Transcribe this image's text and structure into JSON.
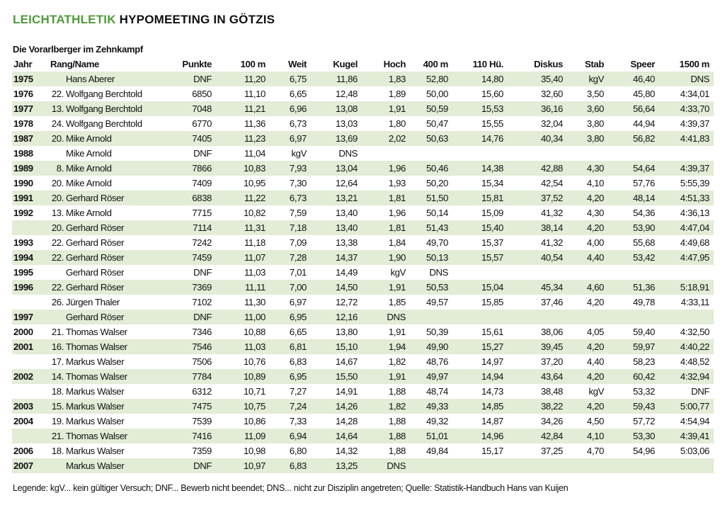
{
  "title": {
    "accent": "LEICHTATHLETIK",
    "rest": "HYPOMEETING IN GÖTZIS"
  },
  "subtitle": "Die Vorarlberger im Zehnkampf",
  "columns": [
    "Jahr",
    "Rang/Name",
    "Punkte",
    "100 m",
    "Weit",
    "Kugel",
    "Hoch",
    "400 m",
    "110 Hü.",
    "Diskus",
    "Stab",
    "Speer",
    "1500 m"
  ],
  "rows": [
    {
      "jahr": "1975",
      "rang": "",
      "name": "Hans Aberer",
      "punkte": "DNF",
      "m100": "11,20",
      "weit": "6,75",
      "kugel": "11,86",
      "hoch": "1,83",
      "m400": "52,80",
      "hue110": "14,80",
      "diskus": "35,40",
      "stab": "kgV",
      "speer": "46,40",
      "m1500": "DNS"
    },
    {
      "jahr": "1976",
      "rang": "22.",
      "name": "Wolfgang Berchtold",
      "punkte": "6850",
      "m100": "11,10",
      "weit": "6,65",
      "kugel": "12,48",
      "hoch": "1,89",
      "m400": "50,00",
      "hue110": "15,60",
      "diskus": "32,60",
      "stab": "3,50",
      "speer": "45,80",
      "m1500": "4:34,01"
    },
    {
      "jahr": "1977",
      "rang": "13.",
      "name": "Wolfgang Berchtold",
      "punkte": "7048",
      "m100": "11,21",
      "weit": "6,96",
      "kugel": "13,08",
      "hoch": "1,91",
      "m400": "50,59",
      "hue110": "15,53",
      "diskus": "36,16",
      "stab": "3,60",
      "speer": "56,64",
      "m1500": "4:33,70"
    },
    {
      "jahr": "1978",
      "rang": "24.",
      "name": "Wolfgang Berchtold",
      "punkte": "6770",
      "m100": "11,36",
      "weit": "6,73",
      "kugel": "13,03",
      "hoch": "1,80",
      "m400": "50,47",
      "hue110": "15,55",
      "diskus": "32,04",
      "stab": "3,80",
      "speer": "44,94",
      "m1500": "4:39,37"
    },
    {
      "jahr": "1987",
      "rang": "20.",
      "name": "Mike Arnold",
      "punkte": "7405",
      "m100": "11,23",
      "weit": "6,97",
      "kugel": "13,69",
      "hoch": "2,02",
      "m400": "50,63",
      "hue110": "14,76",
      "diskus": "40,34",
      "stab": "3,80",
      "speer": "56,82",
      "m1500": "4:41,83"
    },
    {
      "jahr": "1988",
      "rang": "",
      "name": "Mike Arnold",
      "punkte": "DNF",
      "m100": "11,04",
      "weit": "kgV",
      "kugel": "DNS",
      "hoch": "",
      "m400": "",
      "hue110": "",
      "diskus": "",
      "stab": "",
      "speer": "",
      "m1500": ""
    },
    {
      "jahr": "1989",
      "rang": "8.",
      "name": "Mike Arnold",
      "punkte": "7866",
      "m100": "10,83",
      "weit": "7,93",
      "kugel": "13,04",
      "hoch": "1,96",
      "m400": "50,46",
      "hue110": "14,38",
      "diskus": "42,88",
      "stab": "4,30",
      "speer": "54,64",
      "m1500": "4:39,37"
    },
    {
      "jahr": "1990",
      "rang": "20.",
      "name": "Mike Arnold",
      "punkte": "7409",
      "m100": "10,95",
      "weit": "7,30",
      "kugel": "12,64",
      "hoch": "1,93",
      "m400": "50,20",
      "hue110": "15,34",
      "diskus": "42,54",
      "stab": "4,10",
      "speer": "57,76",
      "m1500": "5:55,39"
    },
    {
      "jahr": "1991",
      "rang": "20.",
      "name": "Gerhard Röser",
      "punkte": "6838",
      "m100": "11,22",
      "weit": "6,73",
      "kugel": "13,21",
      "hoch": "1,81",
      "m400": "51,50",
      "hue110": "15,81",
      "diskus": "37,52",
      "stab": "4,20",
      "speer": "48,14",
      "m1500": "4:51,33"
    },
    {
      "jahr": "1992",
      "rang": "13.",
      "name": "Mike Arnold",
      "punkte": "7715",
      "m100": "10,82",
      "weit": "7,59",
      "kugel": "13,40",
      "hoch": "1,96",
      "m400": "50,14",
      "hue110": "15,09",
      "diskus": "41,32",
      "stab": "4,30",
      "speer": "54,36",
      "m1500": "4:36,13"
    },
    {
      "jahr": "",
      "rang": "20.",
      "name": "Gerhard Röser",
      "punkte": "7114",
      "m100": "11,31",
      "weit": "7,18",
      "kugel": "13,40",
      "hoch": "1,81",
      "m400": "51,43",
      "hue110": "15,40",
      "diskus": "38,14",
      "stab": "4,20",
      "speer": "53,90",
      "m1500": "4:47,04"
    },
    {
      "jahr": "1993",
      "rang": "22.",
      "name": "Gerhard Röser",
      "punkte": "7242",
      "m100": "11,18",
      "weit": "7,09",
      "kugel": "13,38",
      "hoch": "1,84",
      "m400": "49,70",
      "hue110": "15,37",
      "diskus": "41,32",
      "stab": "4,00",
      "speer": "55,68",
      "m1500": "4:49,68"
    },
    {
      "jahr": "1994",
      "rang": "22.",
      "name": "Gerhard Röser",
      "punkte": "7459",
      "m100": "11,07",
      "weit": "7,28",
      "kugel": "14,37",
      "hoch": "1,90",
      "m400": "50,13",
      "hue110": "15,57",
      "diskus": "40,54",
      "stab": "4,40",
      "speer": "53,42",
      "m1500": "4:47,95"
    },
    {
      "jahr": "1995",
      "rang": "",
      "name": "Gerhard Röser",
      "punkte": "DNF",
      "m100": "11,03",
      "weit": "7,01",
      "kugel": "14,49",
      "hoch": "kgV",
      "m400": "DNS",
      "hue110": "",
      "diskus": "",
      "stab": "",
      "speer": "",
      "m1500": ""
    },
    {
      "jahr": "1996",
      "rang": "22.",
      "name": "Gerhard Röser",
      "punkte": "7369",
      "m100": "11,11",
      "weit": "7,00",
      "kugel": "14,50",
      "hoch": "1,91",
      "m400": "50,53",
      "hue110": "15,04",
      "diskus": "45,34",
      "stab": "4,60",
      "speer": "51,36",
      "m1500": "5:18,91"
    },
    {
      "jahr": "",
      "rang": "26.",
      "name": "Jürgen Thaler",
      "punkte": "7102",
      "m100": "11,30",
      "weit": "6,97",
      "kugel": "12,72",
      "hoch": "1,85",
      "m400": "49,57",
      "hue110": "15,85",
      "diskus": "37,46",
      "stab": "4,20",
      "speer": "49,78",
      "m1500": "4:33,11"
    },
    {
      "jahr": "1997",
      "rang": "",
      "name": "Gerhard Röser",
      "punkte": "DNF",
      "m100": "11,00",
      "weit": "6,95",
      "kugel": "12,16",
      "hoch": "DNS",
      "m400": "",
      "hue110": "",
      "diskus": "",
      "stab": "",
      "speer": "",
      "m1500": ""
    },
    {
      "jahr": "2000",
      "rang": "21.",
      "name": "Thomas Walser",
      "punkte": "7346",
      "m100": "10,88",
      "weit": "6,65",
      "kugel": "13,80",
      "hoch": "1,91",
      "m400": "50,39",
      "hue110": "15,61",
      "diskus": "38,06",
      "stab": "4,05",
      "speer": "59,40",
      "m1500": "4:32,50"
    },
    {
      "jahr": "2001",
      "rang": "16.",
      "name": "Thomas Walser",
      "punkte": "7546",
      "m100": "11,03",
      "weit": "6,81",
      "kugel": "15,10",
      "hoch": "1,94",
      "m400": "49,90",
      "hue110": "15,27",
      "diskus": "39,45",
      "stab": "4,20",
      "speer": "59,97",
      "m1500": "4:40,22"
    },
    {
      "jahr": "",
      "rang": "17.",
      "name": "Markus Walser",
      "punkte": "7506",
      "m100": "10,76",
      "weit": "6,83",
      "kugel": "14,67",
      "hoch": "1,82",
      "m400": "48,76",
      "hue110": "14,97",
      "diskus": "37,20",
      "stab": "4,40",
      "speer": "58,23",
      "m1500": "4:48,52"
    },
    {
      "jahr": "2002",
      "rang": "14.",
      "name": "Thomas Walser",
      "punkte": "7784",
      "m100": "10,89",
      "weit": "6,95",
      "kugel": "15,50",
      "hoch": "1,91",
      "m400": "49,97",
      "hue110": "14,94",
      "diskus": "43,64",
      "stab": "4,20",
      "speer": "60,42",
      "m1500": "4:32,94"
    },
    {
      "jahr": "",
      "rang": "18.",
      "name": "Markus Walser",
      "punkte": "6312",
      "m100": "10,71",
      "weit": "7,27",
      "kugel": "14,91",
      "hoch": "1,88",
      "m400": "48,74",
      "hue110": "14,73",
      "diskus": "38,48",
      "stab": "kgV",
      "speer": "53,32",
      "m1500": "DNF"
    },
    {
      "jahr": "2003",
      "rang": "15.",
      "name": "Markus Walser",
      "punkte": "7475",
      "m100": "10,75",
      "weit": "7,24",
      "kugel": "14,26",
      "hoch": "1,82",
      "m400": "49,33",
      "hue110": "14,85",
      "diskus": "38,22",
      "stab": "4,20",
      "speer": "59,43",
      "m1500": "5:00,77"
    },
    {
      "jahr": "2004",
      "rang": "19.",
      "name": "Markus Walser",
      "punkte": "7539",
      "m100": "10,86",
      "weit": "7,33",
      "kugel": "14,28",
      "hoch": "1,88",
      "m400": "49,32",
      "hue110": "14,87",
      "diskus": "34,26",
      "stab": "4,50",
      "speer": "57,72",
      "m1500": "4:54,94"
    },
    {
      "jahr": "",
      "rang": "21.",
      "name": "Thomas Walser",
      "punkte": "7416",
      "m100": "11,09",
      "weit": "6,94",
      "kugel": "14,64",
      "hoch": "1,88",
      "m400": "51,01",
      "hue110": "14,96",
      "diskus": "42,84",
      "stab": "4,10",
      "speer": "53,30",
      "m1500": "4:39,41"
    },
    {
      "jahr": "2006",
      "rang": "18.",
      "name": "Markus Walser",
      "punkte": "7359",
      "m100": "10,98",
      "weit": "6,80",
      "kugel": "14,32",
      "hoch": "1,88",
      "m400": "49,84",
      "hue110": "15,17",
      "diskus": "37,25",
      "stab": "4,70",
      "speer": "54,96",
      "m1500": "5:03,06"
    },
    {
      "jahr": "2007",
      "rang": "",
      "name": "Markus Walser",
      "punkte": "DNF",
      "m100": "10,97",
      "weit": "6,83",
      "kugel": "13,25",
      "hoch": "DNS",
      "m400": "",
      "hue110": "",
      "diskus": "",
      "stab": "",
      "speer": "",
      "m1500": ""
    }
  ],
  "legend": "Legende: kgV... kein gültiger Versuch; DNF... Bewerb nicht beendet; DNS... nicht zur Disziplin angetreten; Quelle: Statistik-Handbuch Hans van Kuijen"
}
